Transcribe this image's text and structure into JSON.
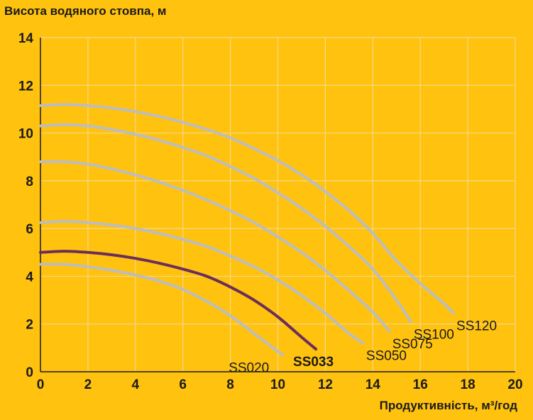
{
  "chart_data": {
    "type": "line",
    "title": "",
    "ylabel": "Висота водяного стовпа, м",
    "xlabel": "Продуктивність, м³/год",
    "xlim": [
      0,
      20
    ],
    "ylim": [
      0,
      14
    ],
    "xticks": [
      "0",
      "2",
      "4",
      "6",
      "8",
      "10",
      "12",
      "14",
      "16",
      "18",
      "20"
    ],
    "yticks": [
      "0",
      "2",
      "4",
      "6",
      "8",
      "10",
      "12",
      "14"
    ],
    "grid": true,
    "colors": {
      "background": "#FFC20E",
      "grid": "#F5D98A",
      "axis": "#1a1a1a",
      "series": "#BDBDBD",
      "highlight": "#6B2E5A"
    },
    "series": [
      {
        "name": "SS020",
        "highlight": false,
        "x": [
          0,
          1,
          2,
          3,
          4,
          5,
          6,
          7,
          8,
          9,
          10.2
        ],
        "y": [
          4.5,
          4.5,
          4.4,
          4.25,
          4.05,
          3.8,
          3.45,
          2.95,
          2.35,
          1.6,
          0.7
        ]
      },
      {
        "name": "SS033",
        "highlight": true,
        "x": [
          0,
          1,
          2,
          3,
          4,
          5,
          6,
          7,
          8,
          9,
          10,
          11,
          11.6
        ],
        "y": [
          5.0,
          5.05,
          5.0,
          4.9,
          4.75,
          4.55,
          4.3,
          4.0,
          3.55,
          3.0,
          2.3,
          1.45,
          0.95
        ]
      },
      {
        "name": "SS050",
        "highlight": false,
        "x": [
          0,
          1,
          2,
          3,
          4,
          5,
          6,
          7,
          8,
          9,
          10,
          11,
          12,
          13,
          13.6
        ],
        "y": [
          6.25,
          6.3,
          6.25,
          6.15,
          6.0,
          5.8,
          5.55,
          5.25,
          4.85,
          4.4,
          3.85,
          3.2,
          2.45,
          1.6,
          1.2
        ]
      },
      {
        "name": "SS075",
        "highlight": false,
        "x": [
          0,
          1,
          2,
          3,
          4,
          5,
          6,
          7,
          8,
          9,
          10,
          11,
          12,
          13,
          14,
          14.7
        ],
        "y": [
          8.8,
          8.8,
          8.7,
          8.5,
          8.25,
          7.95,
          7.6,
          7.2,
          6.75,
          6.25,
          5.65,
          5.0,
          4.25,
          3.4,
          2.5,
          1.7
        ]
      },
      {
        "name": "SS100",
        "highlight": false,
        "x": [
          0,
          1,
          2,
          3,
          4,
          5,
          6,
          7,
          8,
          9,
          10,
          11,
          12,
          13,
          14,
          15,
          15.6
        ],
        "y": [
          10.3,
          10.35,
          10.3,
          10.15,
          9.95,
          9.7,
          9.4,
          9.05,
          8.6,
          8.1,
          7.5,
          6.85,
          6.1,
          5.25,
          4.3,
          3.0,
          2.1
        ]
      },
      {
        "name": "SS120",
        "highlight": false,
        "x": [
          0,
          1,
          2,
          3,
          4,
          5,
          6,
          7,
          8,
          9,
          10,
          11,
          12,
          13,
          14,
          15,
          16,
          17,
          17.4
        ],
        "y": [
          11.15,
          11.2,
          11.15,
          11.05,
          10.9,
          10.7,
          10.45,
          10.15,
          9.8,
          9.35,
          8.85,
          8.25,
          7.55,
          6.75,
          5.8,
          4.65,
          3.7,
          2.85,
          2.45
        ]
      }
    ]
  }
}
